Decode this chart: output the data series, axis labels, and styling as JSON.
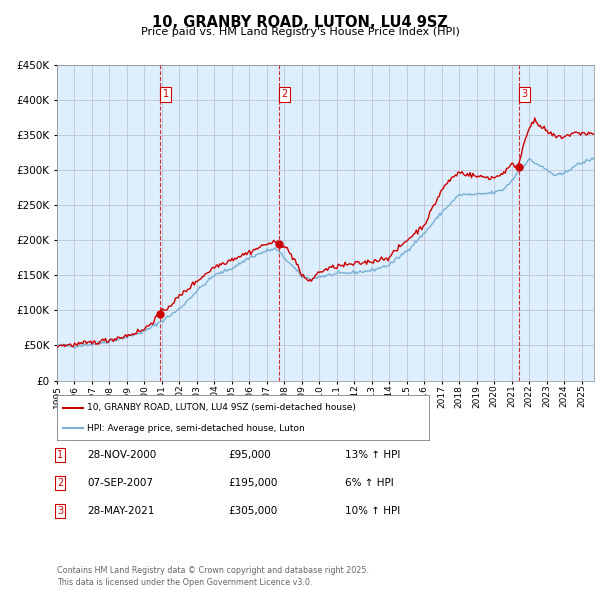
{
  "title": "10, GRANBY ROAD, LUTON, LU4 9SZ",
  "subtitle": "Price paid vs. HM Land Registry's House Price Index (HPI)",
  "legend_line1": "10, GRANBY ROAD, LUTON, LU4 9SZ (semi-detached house)",
  "legend_line2": "HPI: Average price, semi-detached house, Luton",
  "transactions": [
    {
      "num": 1,
      "date": "28-NOV-2000",
      "year": 2000.9,
      "price": 95000,
      "hpi_pct": "13% ↑ HPI"
    },
    {
      "num": 2,
      "date": "07-SEP-2007",
      "year": 2007.68,
      "price": 195000,
      "hpi_pct": "6% ↑ HPI"
    },
    {
      "num": 3,
      "date": "28-MAY-2021",
      "year": 2021.41,
      "price": 305000,
      "hpi_pct": "10% ↑ HPI"
    }
  ],
  "footer": "Contains HM Land Registry data © Crown copyright and database right 2025.\nThis data is licensed under the Open Government Licence v3.0.",
  "red_color": "#cc0000",
  "blue_color": "#7ab0d4",
  "bg_color": "#ddeeff",
  "ylim": [
    0,
    450000
  ],
  "yticks": [
    0,
    50000,
    100000,
    150000,
    200000,
    250000,
    300000,
    350000,
    400000,
    450000
  ],
  "xlim_start": 1995.0,
  "xlim_end": 2025.7
}
